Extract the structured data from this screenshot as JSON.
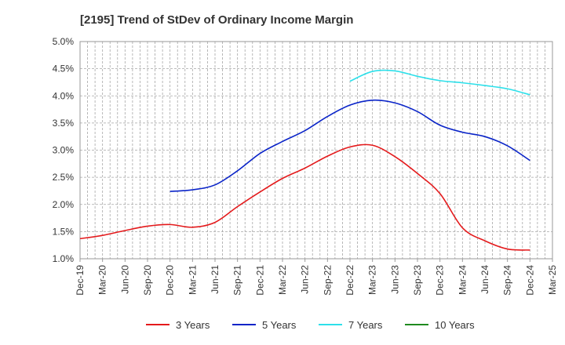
{
  "chart_data": {
    "type": "line",
    "title": "[2195]  Trend of StDev of Ordinary Income Margin",
    "xlabel": "",
    "ylabel": "",
    "ylim": [
      1.0,
      5.0
    ],
    "y_ticks": [
      "1.0%",
      "1.5%",
      "2.0%",
      "2.5%",
      "3.0%",
      "3.5%",
      "4.0%",
      "4.5%",
      "5.0%"
    ],
    "x_ticks": [
      "Dec-19",
      "Mar-20",
      "Jun-20",
      "Sep-20",
      "Dec-20",
      "Mar-21",
      "Jun-21",
      "Sep-21",
      "Dec-21",
      "Mar-22",
      "Jun-22",
      "Sep-22",
      "Dec-22",
      "Mar-23",
      "Jun-23",
      "Sep-23",
      "Dec-23",
      "Mar-24",
      "Jun-24",
      "Sep-24",
      "Dec-24",
      "Mar-25"
    ],
    "grid": true,
    "legend_position": "bottom",
    "series": [
      {
        "name": "3 Years",
        "color": "#e41a1c",
        "points": [
          [
            "Dec-19",
            1.37
          ],
          [
            "Mar-20",
            1.43
          ],
          [
            "Jun-20",
            1.52
          ],
          [
            "Sep-20",
            1.6
          ],
          [
            "Dec-20",
            1.63
          ],
          [
            "Mar-21",
            1.58
          ],
          [
            "Jun-21",
            1.67
          ],
          [
            "Sep-21",
            1.96
          ],
          [
            "Dec-21",
            2.23
          ],
          [
            "Mar-22",
            2.48
          ],
          [
            "Jun-22",
            2.67
          ],
          [
            "Sep-22",
            2.89
          ],
          [
            "Dec-22",
            3.06
          ],
          [
            "Mar-23",
            3.09
          ],
          [
            "Jun-23",
            2.88
          ],
          [
            "Sep-23",
            2.57
          ],
          [
            "Dec-23",
            2.2
          ],
          [
            "Mar-24",
            1.57
          ],
          [
            "Jun-24",
            1.33
          ],
          [
            "Sep-24",
            1.18
          ],
          [
            "Dec-24",
            1.16
          ]
        ]
      },
      {
        "name": "5 Years",
        "color": "#0a24c8",
        "points": [
          [
            "Dec-20",
            2.24
          ],
          [
            "Mar-21",
            2.27
          ],
          [
            "Jun-21",
            2.36
          ],
          [
            "Sep-21",
            2.62
          ],
          [
            "Dec-21",
            2.94
          ],
          [
            "Mar-22",
            3.16
          ],
          [
            "Jun-22",
            3.36
          ],
          [
            "Sep-22",
            3.62
          ],
          [
            "Dec-22",
            3.83
          ],
          [
            "Mar-23",
            3.92
          ],
          [
            "Jun-23",
            3.87
          ],
          [
            "Sep-23",
            3.71
          ],
          [
            "Dec-23",
            3.46
          ],
          [
            "Mar-24",
            3.33
          ],
          [
            "Jun-24",
            3.25
          ],
          [
            "Sep-24",
            3.08
          ],
          [
            "Dec-24",
            2.81
          ]
        ]
      },
      {
        "name": "7 Years",
        "color": "#2de0ea",
        "points": [
          [
            "Dec-22",
            4.27
          ],
          [
            "Mar-23",
            4.45
          ],
          [
            "Jun-23",
            4.46
          ],
          [
            "Sep-23",
            4.36
          ],
          [
            "Dec-23",
            4.28
          ],
          [
            "Mar-24",
            4.24
          ],
          [
            "Jun-24",
            4.19
          ],
          [
            "Sep-24",
            4.13
          ],
          [
            "Dec-24",
            4.02
          ]
        ]
      },
      {
        "name": "10 Years",
        "color": "#1f8a1f",
        "points": []
      }
    ]
  }
}
